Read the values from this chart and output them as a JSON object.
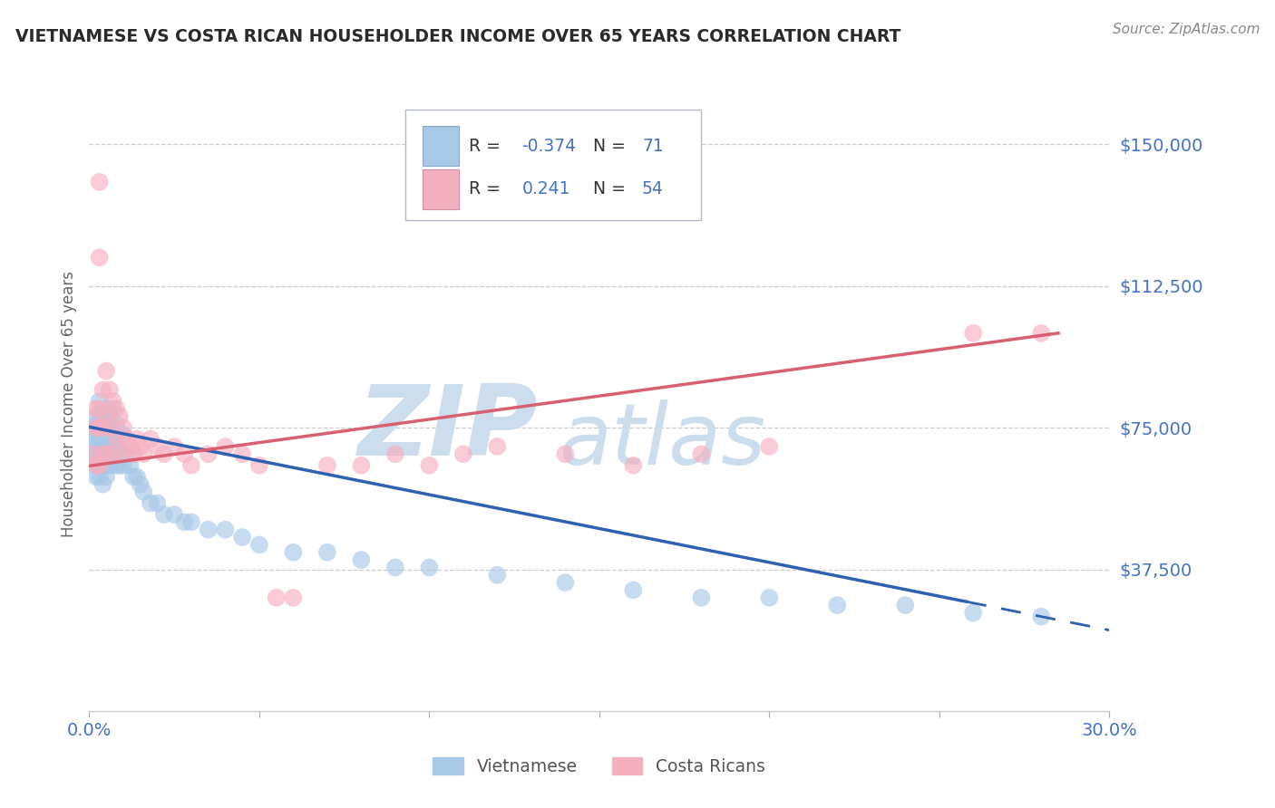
{
  "title": "VIETNAMESE VS COSTA RICAN HOUSEHOLDER INCOME OVER 65 YEARS CORRELATION CHART",
  "source": "Source: ZipAtlas.com",
  "ylabel": "Householder Income Over 65 years",
  "xlim": [
    0.0,
    0.3
  ],
  "ylim": [
    0,
    162500
  ],
  "xticks": [
    0.0,
    0.05,
    0.1,
    0.15,
    0.2,
    0.25,
    0.3
  ],
  "xticklabels": [
    "0.0%",
    "",
    "",
    "",
    "",
    "",
    "30.0%"
  ],
  "ytick_positions": [
    37500,
    75000,
    112500,
    150000
  ],
  "ytick_labels": [
    "$37,500",
    "$75,000",
    "$112,500",
    "$150,000"
  ],
  "background_color": "#ffffff",
  "grid_color": "#cccccc",
  "watermark_zip": "ZIP",
  "watermark_atlas": "atlas",
  "watermark_color": "#ccdded",
  "title_color": "#2a2a2a",
  "axis_label_color": "#666666",
  "ytick_color": "#4472c4",
  "xtick_color": "#4472c4",
  "vietnamese_color": "#a8c8e8",
  "costa_rican_color": "#f5b0c0",
  "vietnamese_line_color": "#3060b0",
  "costa_rican_line_color": "#d86070",
  "legend_r_color": "#4472c4",
  "legend_n_color": "#4472c4",
  "legend_text_color": "#333333",
  "legend_r_viet": "-0.374",
  "legend_n_viet": "71",
  "legend_r_costa": "0.241",
  "legend_n_costa": "54",
  "viet_x": [
    0.001,
    0.001,
    0.001,
    0.002,
    0.002,
    0.002,
    0.002,
    0.002,
    0.002,
    0.003,
    0.003,
    0.003,
    0.003,
    0.003,
    0.003,
    0.003,
    0.004,
    0.004,
    0.004,
    0.004,
    0.004,
    0.005,
    0.005,
    0.005,
    0.005,
    0.005,
    0.005,
    0.006,
    0.006,
    0.006,
    0.006,
    0.007,
    0.007,
    0.007,
    0.008,
    0.008,
    0.008,
    0.009,
    0.009,
    0.01,
    0.01,
    0.011,
    0.012,
    0.013,
    0.014,
    0.015,
    0.016,
    0.018,
    0.02,
    0.022,
    0.025,
    0.028,
    0.03,
    0.035,
    0.04,
    0.045,
    0.05,
    0.06,
    0.07,
    0.08,
    0.09,
    0.1,
    0.12,
    0.14,
    0.16,
    0.18,
    0.2,
    0.22,
    0.24,
    0.26,
    0.28
  ],
  "viet_y": [
    75000,
    72000,
    68000,
    78000,
    75000,
    72000,
    68000,
    65000,
    62000,
    82000,
    78000,
    75000,
    72000,
    68000,
    65000,
    62000,
    78000,
    75000,
    70000,
    65000,
    60000,
    80000,
    75000,
    72000,
    68000,
    65000,
    62000,
    78000,
    75000,
    70000,
    65000,
    80000,
    74000,
    68000,
    76000,
    72000,
    65000,
    70000,
    65000,
    73000,
    65000,
    68000,
    65000,
    62000,
    62000,
    60000,
    58000,
    55000,
    55000,
    52000,
    52000,
    50000,
    50000,
    48000,
    48000,
    46000,
    44000,
    42000,
    42000,
    40000,
    38000,
    38000,
    36000,
    34000,
    32000,
    30000,
    30000,
    28000,
    28000,
    26000,
    25000
  ],
  "costa_x": [
    0.001,
    0.002,
    0.002,
    0.002,
    0.003,
    0.003,
    0.003,
    0.003,
    0.003,
    0.004,
    0.004,
    0.004,
    0.005,
    0.005,
    0.005,
    0.006,
    0.006,
    0.007,
    0.007,
    0.008,
    0.008,
    0.009,
    0.01,
    0.01,
    0.011,
    0.012,
    0.013,
    0.014,
    0.015,
    0.016,
    0.018,
    0.02,
    0.022,
    0.025,
    0.028,
    0.03,
    0.035,
    0.04,
    0.045,
    0.05,
    0.055,
    0.06,
    0.07,
    0.08,
    0.09,
    0.1,
    0.11,
    0.12,
    0.14,
    0.16,
    0.18,
    0.2,
    0.26,
    0.28
  ],
  "costa_y": [
    68000,
    80000,
    75000,
    65000,
    140000,
    120000,
    80000,
    75000,
    65000,
    85000,
    75000,
    68000,
    90000,
    78000,
    68000,
    85000,
    75000,
    82000,
    68000,
    80000,
    72000,
    78000,
    75000,
    68000,
    72000,
    70000,
    68000,
    72000,
    70000,
    68000,
    72000,
    70000,
    68000,
    70000,
    68000,
    65000,
    68000,
    70000,
    68000,
    65000,
    30000,
    30000,
    65000,
    65000,
    68000,
    65000,
    68000,
    70000,
    68000,
    65000,
    68000,
    70000,
    100000,
    100000
  ]
}
